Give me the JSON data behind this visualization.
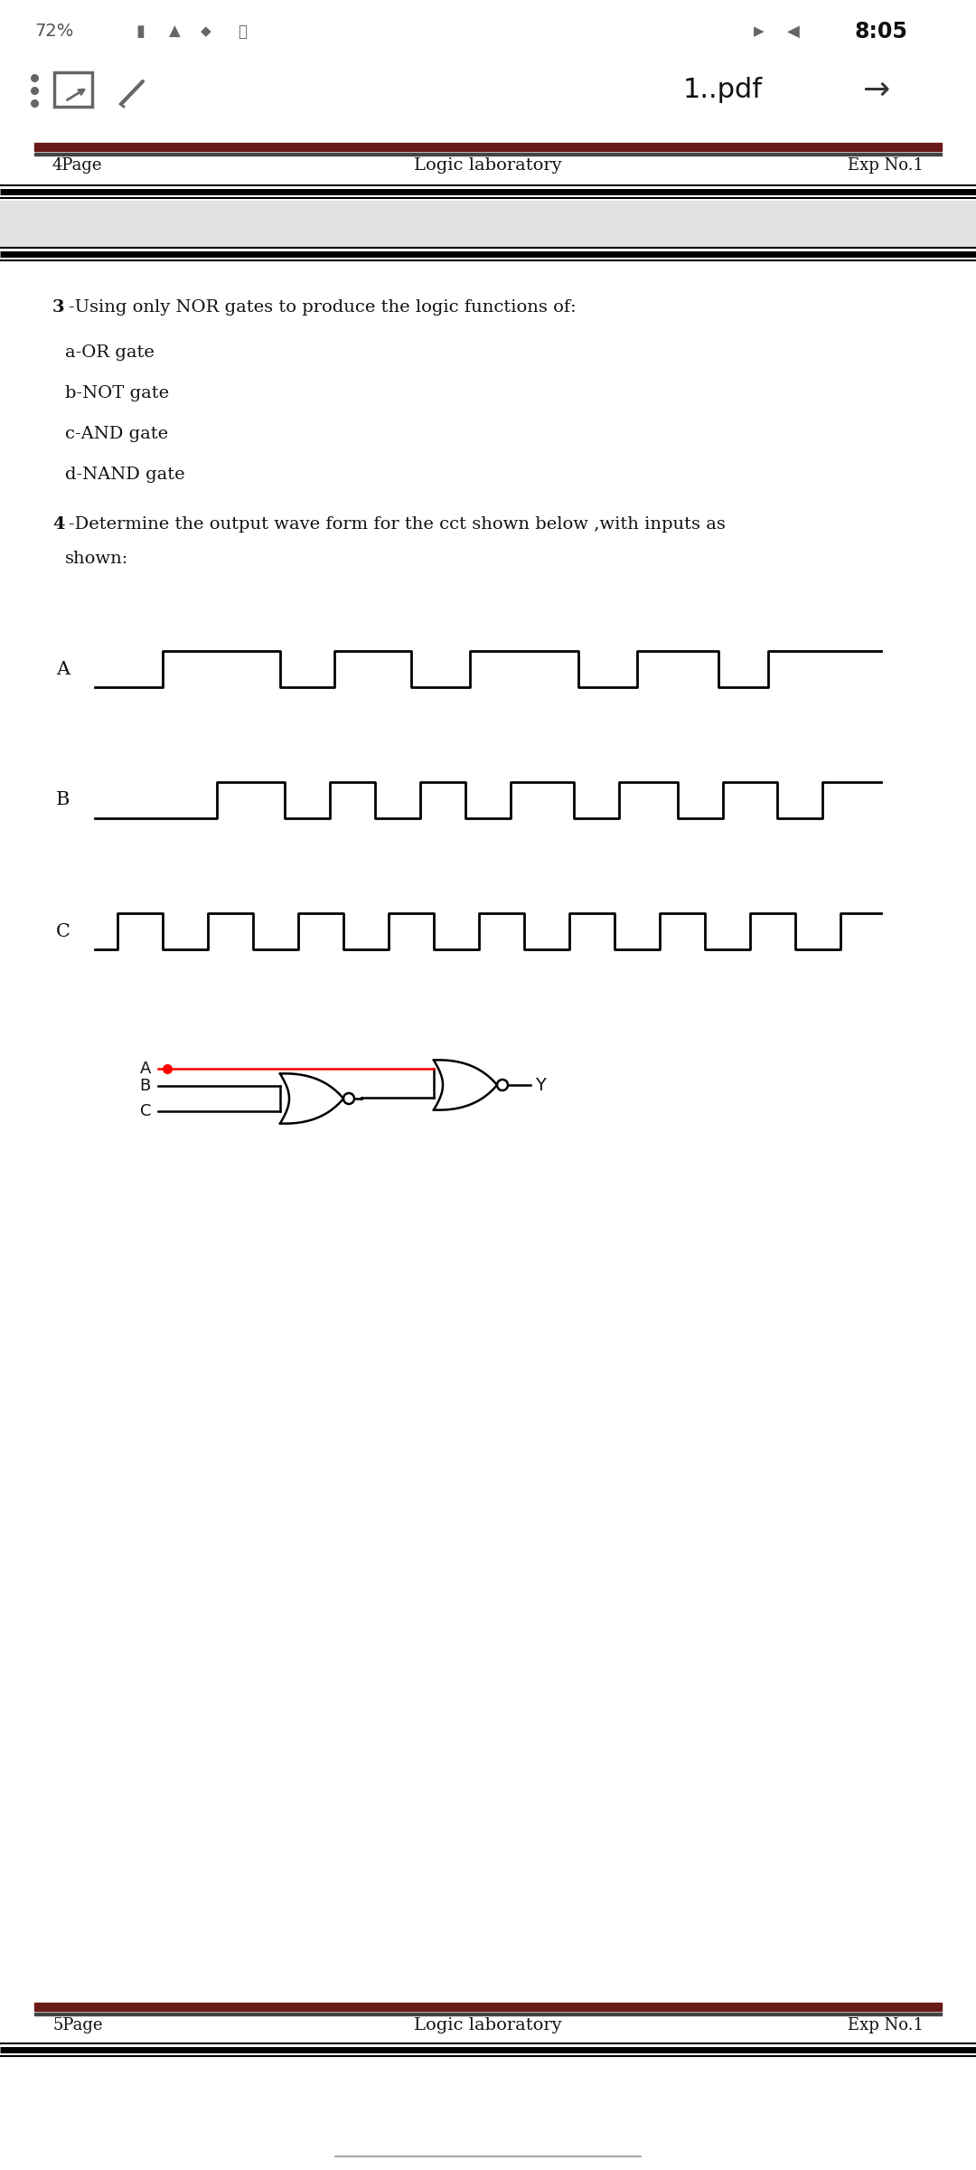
{
  "title": "Logic laboratory",
  "exp": "Exp No.1",
  "page4": "4Page",
  "page5": "5Page",
  "header_red_color": "#6B1A1A",
  "body_bg": "#ffffff",
  "gray_bar_color": "#e2e2e2",
  "text_color": "#111111",
  "item3_text": "-Using only NOR gates to produce the logic functions of:",
  "item_a": "a-OR gate",
  "item_b": "b-NOT gate",
  "item_c": "c-AND gate",
  "item_d": "d-NAND gate",
  "item4_line1": "-Determine the output wave form for the cct shown below ,with inputs as",
  "item4_line2": "shown:",
  "status_left": "72%",
  "status_time": "8:05",
  "pdf_name": "1..pdf",
  "fig_width": 10.8,
  "fig_height": 24.0,
  "dpi": 100
}
